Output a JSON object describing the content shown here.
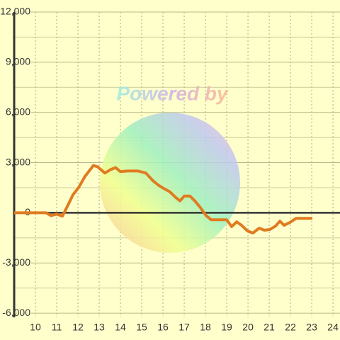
{
  "chart_data": {
    "type": "line",
    "watermark": "Powered by",
    "xlim": [
      9,
      24.33
    ],
    "xticks": [
      10,
      11,
      12,
      13,
      14,
      15,
      16,
      17,
      18,
      19,
      20,
      21,
      22,
      23,
      24
    ],
    "ylim": [
      -6250,
      12000
    ],
    "yticks": [
      {
        "value": 12000,
        "label": "12,000"
      },
      {
        "value": 9000,
        "label": "9,000"
      },
      {
        "value": 6000,
        "label": "6,000"
      },
      {
        "value": 3000,
        "label": "3,000"
      },
      0,
      {
        "value": -3000,
        "label": "-3,000"
      },
      {
        "value": -6000,
        "label": "-6,000"
      }
    ],
    "y_minor_ticks": [
      10500,
      7500,
      4500,
      1500,
      -1500,
      -4500
    ],
    "grid": true,
    "series": [
      {
        "color": "#e07b20",
        "x": [
          9,
          10.5,
          10.73,
          11.0,
          11.27,
          11.5,
          11.77,
          12.03,
          12.33,
          12.73,
          12.93,
          13.27,
          13.53,
          13.77,
          14.0,
          14.33,
          14.83,
          15.2,
          15.53,
          15.77,
          16.03,
          16.33,
          16.6,
          16.8,
          17.0,
          17.27,
          17.53,
          17.77,
          18.03,
          18.27,
          18.63,
          19.0,
          19.23,
          19.47,
          19.7,
          19.97,
          20.23,
          20.53,
          20.77,
          21.03,
          21.3,
          21.5,
          21.7,
          21.97,
          22.27,
          23.03
        ],
        "values": [
          0,
          0,
          -170,
          -80,
          -200,
          375,
          1080,
          1500,
          2170,
          2830,
          2750,
          2375,
          2580,
          2700,
          2460,
          2500,
          2500,
          2375,
          1920,
          1670,
          1460,
          1250,
          920,
          710,
          1000,
          1000,
          670,
          290,
          -170,
          -420,
          -420,
          -420,
          -830,
          -540,
          -750,
          -1080,
          -1210,
          -920,
          -1040,
          -1000,
          -790,
          -500,
          -750,
          -580,
          -330,
          -330
        ]
      }
    ]
  }
}
